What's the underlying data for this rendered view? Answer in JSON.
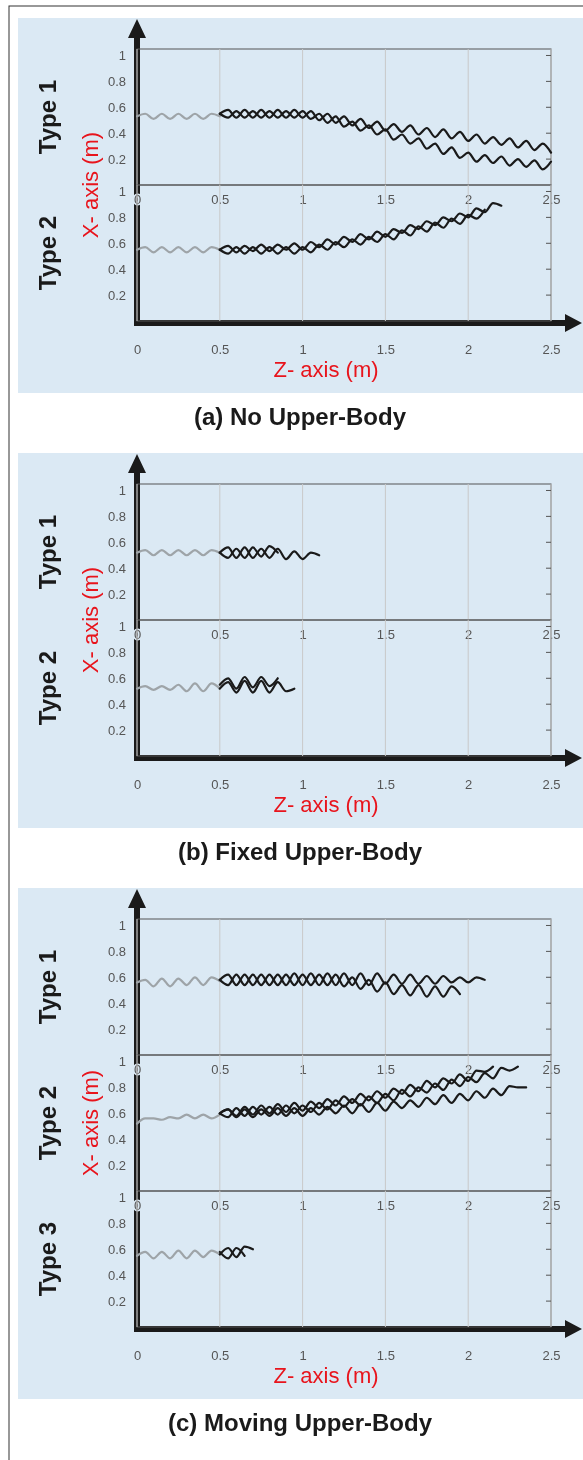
{
  "chart_data": [
    {
      "type": "line",
      "title": "Type 1",
      "ylabel": "X- axis (m)",
      "xlim": [
        0,
        2.5
      ],
      "ylim": [
        0,
        1.05
      ],
      "xticks": [
        0,
        0.5,
        1,
        1.5,
        2,
        2.5
      ],
      "yticks": [
        0.2,
        0.4,
        0.6,
        0.8,
        1
      ],
      "grid": "x",
      "series": [
        {
          "color": "#9ea4a8",
          "x": [
            0,
            0.05,
            0.1,
            0.15,
            0.2,
            0.25,
            0.3,
            0.35,
            0.4,
            0.45,
            0.5
          ],
          "values": [
            0.53,
            0.55,
            0.51,
            0.55,
            0.51,
            0.55,
            0.51,
            0.55,
            0.51,
            0.55,
            0.53
          ]
        },
        {
          "color": "#1a1a1a",
          "x": [
            0.5,
            0.55,
            0.6,
            0.65,
            0.7,
            0.75,
            0.8,
            0.85,
            0.9,
            0.95,
            1,
            1.05,
            1.1,
            1.15,
            1.2,
            1.25,
            1.3,
            1.35,
            1.4,
            1.45,
            1.5,
            1.55,
            1.6,
            1.65,
            1.7,
            1.75,
            1.8,
            1.85,
            1.9,
            1.95,
            2,
            2.05,
            2.1,
            2.15,
            2.2,
            2.25,
            2.3,
            2.35,
            2.4,
            2.45,
            2.5
          ],
          "values": [
            0.55,
            0.58,
            0.52,
            0.58,
            0.52,
            0.58,
            0.52,
            0.58,
            0.52,
            0.58,
            0.52,
            0.57,
            0.5,
            0.55,
            0.48,
            0.53,
            0.46,
            0.51,
            0.44,
            0.49,
            0.42,
            0.47,
            0.41,
            0.46,
            0.39,
            0.44,
            0.37,
            0.43,
            0.36,
            0.41,
            0.34,
            0.39,
            0.32,
            0.37,
            0.31,
            0.36,
            0.29,
            0.34,
            0.27,
            0.32,
            0.25
          ]
        },
        {
          "color": "#1a1a1a",
          "x": [
            0.5,
            0.55,
            0.6,
            0.65,
            0.7,
            0.75,
            0.8,
            0.85,
            0.9,
            0.95,
            1,
            1.05,
            1.1,
            1.15,
            1.2,
            1.25,
            1.3,
            1.35,
            1.4,
            1.45,
            1.5,
            1.55,
            1.6,
            1.65,
            1.7,
            1.75,
            1.8,
            1.85,
            1.9,
            1.95,
            2,
            2.05,
            2.1,
            2.15,
            2.2,
            2.25,
            2.3,
            2.35,
            2.4,
            2.45,
            2.5
          ],
          "values": [
            0.55,
            0.52,
            0.57,
            0.52,
            0.57,
            0.52,
            0.57,
            0.52,
            0.57,
            0.52,
            0.57,
            0.51,
            0.55,
            0.48,
            0.53,
            0.45,
            0.49,
            0.42,
            0.46,
            0.39,
            0.43,
            0.35,
            0.39,
            0.32,
            0.36,
            0.28,
            0.32,
            0.24,
            0.29,
            0.21,
            0.25,
            0.18,
            0.23,
            0.17,
            0.22,
            0.15,
            0.2,
            0.14,
            0.19,
            0.12,
            0.18
          ]
        }
      ]
    },
    {
      "type": "line",
      "title": "Type 2",
      "xlabel": "Z- axis (m)",
      "annotations": [
        "(a) No Upper-Body"
      ],
      "xlim": [
        0,
        2.5
      ],
      "ylim": [
        0,
        1.05
      ],
      "xticks": [
        0,
        0.5,
        1,
        1.5,
        2,
        2.5
      ],
      "yticks": [
        0.2,
        0.4,
        0.6,
        0.8,
        1
      ],
      "grid": "x",
      "series": [
        {
          "color": "#9ea4a8",
          "x": [
            0,
            0.05,
            0.1,
            0.15,
            0.2,
            0.25,
            0.3,
            0.35,
            0.4,
            0.45,
            0.5
          ],
          "values": [
            0.55,
            0.57,
            0.53,
            0.57,
            0.53,
            0.57,
            0.53,
            0.57,
            0.53,
            0.57,
            0.55
          ]
        },
        {
          "color": "#1a1a1a",
          "x": [
            0.5,
            0.55,
            0.6,
            0.65,
            0.7,
            0.75,
            0.8,
            0.85,
            0.9,
            0.95,
            1,
            1.05,
            1.1,
            1.15,
            1.2,
            1.25,
            1.3,
            1.35,
            1.4,
            1.45,
            1.5,
            1.55,
            1.6,
            1.65,
            1.7,
            1.75,
            1.8,
            1.85,
            1.9,
            1.95,
            2,
            2.05,
            2.1,
            2.15,
            2.2
          ],
          "values": [
            0.55,
            0.58,
            0.53,
            0.58,
            0.54,
            0.59,
            0.54,
            0.59,
            0.55,
            0.6,
            0.55,
            0.61,
            0.57,
            0.63,
            0.59,
            0.65,
            0.61,
            0.67,
            0.63,
            0.69,
            0.65,
            0.71,
            0.68,
            0.74,
            0.71,
            0.77,
            0.74,
            0.8,
            0.77,
            0.83,
            0.8,
            0.87,
            0.84,
            0.91,
            0.89
          ]
        },
        {
          "color": "#1a1a1a",
          "x": [
            0.5,
            0.55,
            0.6,
            0.65,
            0.7,
            0.75,
            0.8,
            0.85,
            0.9,
            0.95,
            1,
            1.05,
            1.1,
            1.15,
            1.2,
            1.25,
            1.3,
            1.35,
            1.4,
            1.45,
            1.5,
            1.55,
            1.6,
            1.65,
            1.7,
            1.75,
            1.8,
            1.85,
            1.9,
            1.95,
            2,
            2.05,
            2.1
          ],
          "values": [
            0.55,
            0.52,
            0.57,
            0.52,
            0.57,
            0.52,
            0.57,
            0.52,
            0.57,
            0.52,
            0.57,
            0.53,
            0.59,
            0.55,
            0.61,
            0.57,
            0.63,
            0.59,
            0.65,
            0.61,
            0.67,
            0.63,
            0.7,
            0.66,
            0.73,
            0.69,
            0.76,
            0.72,
            0.79,
            0.75,
            0.82,
            0.79,
            0.86
          ]
        }
      ]
    },
    {
      "type": "line",
      "title": "Type 1",
      "ylabel": "X- axis (m)",
      "xlim": [
        0,
        2.5
      ],
      "ylim": [
        0,
        1.05
      ],
      "xticks": [
        0,
        0.5,
        1,
        1.5,
        2,
        2.5
      ],
      "yticks": [
        0.2,
        0.4,
        0.6,
        0.8,
        1
      ],
      "grid": "x",
      "series": [
        {
          "color": "#9ea4a8",
          "x": [
            0,
            0.05,
            0.1,
            0.15,
            0.2,
            0.25,
            0.3,
            0.35,
            0.4,
            0.45,
            0.5
          ],
          "values": [
            0.52,
            0.54,
            0.5,
            0.54,
            0.5,
            0.54,
            0.5,
            0.54,
            0.5,
            0.54,
            0.52
          ]
        },
        {
          "color": "#1a1a1a",
          "x": [
            0.5,
            0.55,
            0.6,
            0.65,
            0.7,
            0.75,
            0.8,
            0.85,
            0.9,
            0.95,
            1,
            1.05,
            1.1
          ],
          "values": [
            0.52,
            0.56,
            0.48,
            0.56,
            0.48,
            0.55,
            0.48,
            0.55,
            0.47,
            0.53,
            0.47,
            0.52,
            0.5
          ]
        },
        {
          "color": "#1a1a1a",
          "x": [
            0.5,
            0.55,
            0.6,
            0.65,
            0.7,
            0.75,
            0.8,
            0.85
          ],
          "values": [
            0.52,
            0.48,
            0.55,
            0.48,
            0.56,
            0.49,
            0.57,
            0.52
          ]
        }
      ]
    },
    {
      "type": "line",
      "title": "Type 2",
      "xlabel": "Z- axis (m)",
      "annotations": [
        "(b) Fixed Upper-Body"
      ],
      "xlim": [
        0,
        2.5
      ],
      "ylim": [
        0,
        1.05
      ],
      "xticks": [
        0,
        0.5,
        1,
        1.5,
        2,
        2.5
      ],
      "yticks": [
        0.2,
        0.4,
        0.6,
        0.8,
        1
      ],
      "grid": "x",
      "series": [
        {
          "color": "#9ea4a8",
          "x": [
            0,
            0.05,
            0.1,
            0.15,
            0.2,
            0.25,
            0.3,
            0.35,
            0.4,
            0.45,
            0.5
          ],
          "values": [
            0.52,
            0.54,
            0.51,
            0.54,
            0.51,
            0.55,
            0.5,
            0.56,
            0.5,
            0.56,
            0.52
          ]
        },
        {
          "color": "#1a1a1a",
          "x": [
            0.5,
            0.55,
            0.6,
            0.65,
            0.7,
            0.75,
            0.8,
            0.85,
            0.9,
            0.95
          ],
          "values": [
            0.52,
            0.57,
            0.49,
            0.58,
            0.49,
            0.58,
            0.49,
            0.57,
            0.5,
            0.52
          ]
        },
        {
          "color": "#1a1a1a",
          "x": [
            0.5,
            0.55,
            0.6,
            0.65,
            0.7,
            0.75,
            0.8,
            0.85
          ],
          "values": [
            0.55,
            0.6,
            0.52,
            0.61,
            0.53,
            0.61,
            0.54,
            0.6
          ]
        }
      ]
    },
    {
      "type": "line",
      "title": "Type 1",
      "xlim": [
        0,
        2.5
      ],
      "ylim": [
        0,
        1.05
      ],
      "xticks": [
        0,
        0.5,
        1,
        1.5,
        2,
        2.5
      ],
      "yticks": [
        0.2,
        0.4,
        0.6,
        0.8,
        1
      ],
      "grid": "x",
      "series": [
        {
          "color": "#9ea4a8",
          "x": [
            0,
            0.05,
            0.1,
            0.15,
            0.2,
            0.25,
            0.3,
            0.35,
            0.4,
            0.45,
            0.5
          ],
          "values": [
            0.56,
            0.58,
            0.53,
            0.59,
            0.53,
            0.59,
            0.54,
            0.6,
            0.54,
            0.6,
            0.57
          ]
        },
        {
          "color": "#1a1a1a",
          "x": [
            0.5,
            0.55,
            0.6,
            0.65,
            0.7,
            0.75,
            0.8,
            0.85,
            0.9,
            0.95,
            1,
            1.05,
            1.1,
            1.15,
            1.2,
            1.25,
            1.3,
            1.35,
            1.4,
            1.45,
            1.5,
            1.55,
            1.6,
            1.65,
            1.7,
            1.75,
            1.8,
            1.85,
            1.9,
            1.95,
            2,
            2.05,
            2.1
          ],
          "values": [
            0.58,
            0.62,
            0.54,
            0.62,
            0.54,
            0.62,
            0.54,
            0.62,
            0.54,
            0.63,
            0.54,
            0.63,
            0.54,
            0.63,
            0.54,
            0.63,
            0.54,
            0.63,
            0.54,
            0.63,
            0.55,
            0.62,
            0.55,
            0.62,
            0.55,
            0.61,
            0.55,
            0.61,
            0.56,
            0.6,
            0.56,
            0.6,
            0.58
          ]
        },
        {
          "color": "#1a1a1a",
          "x": [
            0.5,
            0.55,
            0.6,
            0.65,
            0.7,
            0.75,
            0.8,
            0.85,
            0.9,
            0.95,
            1,
            1.05,
            1.1,
            1.15,
            1.2,
            1.25,
            1.3,
            1.35,
            1.4,
            1.45,
            1.5,
            1.55,
            1.6,
            1.65,
            1.7,
            1.75,
            1.8,
            1.85,
            1.9,
            1.95
          ],
          "values": [
            0.58,
            0.54,
            0.62,
            0.54,
            0.62,
            0.54,
            0.62,
            0.54,
            0.62,
            0.54,
            0.62,
            0.54,
            0.62,
            0.54,
            0.62,
            0.53,
            0.6,
            0.51,
            0.58,
            0.49,
            0.56,
            0.47,
            0.54,
            0.46,
            0.54,
            0.45,
            0.53,
            0.45,
            0.53,
            0.47
          ]
        }
      ]
    },
    {
      "type": "line",
      "title": "Type 2",
      "ylabel": "X- axis (m)",
      "xlim": [
        0,
        2.5
      ],
      "ylim": [
        0,
        1.05
      ],
      "xticks": [
        0,
        0.5,
        1,
        1.5,
        2,
        2.5
      ],
      "yticks": [
        0.2,
        0.4,
        0.6,
        0.8,
        1
      ],
      "grid": "x",
      "series": [
        {
          "color": "#9ea4a8",
          "x": [
            0,
            0.05,
            0.1,
            0.15,
            0.2,
            0.25,
            0.3,
            0.35,
            0.4,
            0.45,
            0.5
          ],
          "values": [
            0.52,
            0.56,
            0.56,
            0.55,
            0.57,
            0.56,
            0.59,
            0.56,
            0.59,
            0.56,
            0.59
          ]
        },
        {
          "color": "#1a1a1a",
          "x": [
            0.5,
            0.55,
            0.6,
            0.65,
            0.7,
            0.75,
            0.8,
            0.85,
            0.9,
            0.95,
            1,
            1.05,
            1.1,
            1.15,
            1.2,
            1.25,
            1.3,
            1.35,
            1.4,
            1.45,
            1.5,
            1.55,
            1.6,
            1.65,
            1.7,
            1.75,
            1.8,
            1.85,
            1.9,
            1.95,
            2,
            2.05,
            2.1,
            2.15
          ],
          "values": [
            0.6,
            0.63,
            0.58,
            0.65,
            0.59,
            0.66,
            0.6,
            0.67,
            0.61,
            0.68,
            0.62,
            0.69,
            0.64,
            0.71,
            0.66,
            0.73,
            0.68,
            0.75,
            0.7,
            0.77,
            0.72,
            0.79,
            0.75,
            0.82,
            0.77,
            0.85,
            0.8,
            0.87,
            0.83,
            0.9,
            0.85,
            0.93,
            0.92,
            0.96
          ]
        },
        {
          "color": "#1a1a1a",
          "x": [
            0.5,
            0.55,
            0.6,
            0.65,
            0.7,
            0.75,
            0.8,
            0.85,
            0.9,
            0.95,
            1,
            1.05,
            1.1,
            1.15,
            1.2,
            1.25,
            1.3,
            1.35,
            1.4,
            1.45,
            1.5,
            1.55,
            1.6,
            1.65,
            1.7,
            1.75,
            1.8,
            1.85,
            1.9,
            1.95,
            2,
            2.05,
            2.1,
            2.15,
            2.2,
            2.25,
            2.3
          ],
          "values": [
            0.6,
            0.57,
            0.64,
            0.58,
            0.65,
            0.59,
            0.65,
            0.59,
            0.66,
            0.6,
            0.66,
            0.61,
            0.68,
            0.63,
            0.7,
            0.65,
            0.71,
            0.66,
            0.73,
            0.68,
            0.75,
            0.7,
            0.78,
            0.73,
            0.8,
            0.76,
            0.83,
            0.78,
            0.86,
            0.81,
            0.88,
            0.84,
            0.91,
            0.87,
            0.95,
            0.93,
            0.96
          ]
        },
        {
          "color": "#1a1a1a",
          "x": [
            0.5,
            0.55,
            0.6,
            0.65,
            0.7,
            0.75,
            0.8,
            0.85,
            0.9,
            0.95,
            1,
            1.05,
            1.1,
            1.15,
            1.2,
            1.25,
            1.3,
            1.35,
            1.4,
            1.45,
            1.5,
            1.55,
            1.6,
            1.65,
            1.7,
            1.75,
            1.8,
            1.85,
            1.9,
            1.95,
            2,
            2.05,
            2.1,
            2.15,
            2.2,
            2.25,
            2.3,
            2.35
          ],
          "values": [
            0.6,
            0.63,
            0.57,
            0.63,
            0.57,
            0.63,
            0.58,
            0.64,
            0.58,
            0.64,
            0.58,
            0.64,
            0.59,
            0.65,
            0.6,
            0.66,
            0.6,
            0.67,
            0.61,
            0.68,
            0.62,
            0.69,
            0.64,
            0.7,
            0.65,
            0.72,
            0.67,
            0.74,
            0.68,
            0.75,
            0.7,
            0.77,
            0.72,
            0.79,
            0.74,
            0.81,
            0.8,
            0.8
          ]
        }
      ]
    },
    {
      "type": "line",
      "title": "Type 3",
      "xlabel": "Z- axis (m)",
      "annotations": [
        "(c) Moving Upper-Body"
      ],
      "xlim": [
        0,
        2.5
      ],
      "ylim": [
        0,
        1.05
      ],
      "xticks": [
        0,
        0.5,
        1,
        1.5,
        2,
        2.5
      ],
      "yticks": [
        0.2,
        0.4,
        0.6,
        0.8,
        1
      ],
      "grid": "x",
      "series": [
        {
          "color": "#9ea4a8",
          "x": [
            0,
            0.05,
            0.1,
            0.15,
            0.2,
            0.25,
            0.3,
            0.35,
            0.4,
            0.45,
            0.5
          ],
          "values": [
            0.55,
            0.58,
            0.53,
            0.58,
            0.53,
            0.59,
            0.53,
            0.59,
            0.54,
            0.59,
            0.56
          ]
        },
        {
          "color": "#1a1a1a",
          "x": [
            0.5,
            0.55,
            0.6,
            0.65,
            0.7
          ],
          "values": [
            0.56,
            0.61,
            0.54,
            0.62,
            0.6
          ]
        },
        {
          "color": "#1a1a1a",
          "x": [
            0.5,
            0.55,
            0.6,
            0.65
          ],
          "values": [
            0.58,
            0.53,
            0.61,
            0.55
          ]
        }
      ]
    }
  ]
}
